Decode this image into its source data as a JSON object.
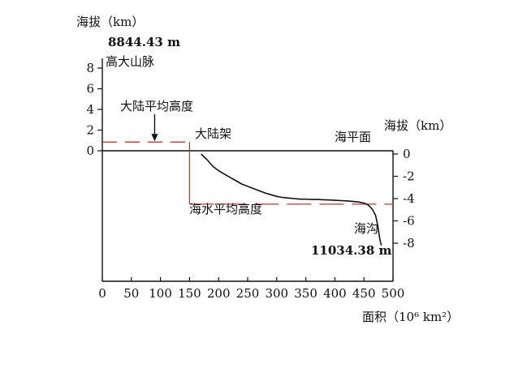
{
  "chart_data": {
    "type": "line",
    "title": "",
    "left_axis": {
      "label": "海拔（km）",
      "ticks": [
        "8",
        "6",
        "4",
        "2",
        "0"
      ],
      "range": [
        0,
        8
      ]
    },
    "right_axis": {
      "label": "海拔（km）",
      "ticks": [
        "0",
        "-2",
        "-4",
        "-6",
        "-8"
      ],
      "range": [
        -8,
        0
      ]
    },
    "x_axis": {
      "label": "面积（10⁶ km²）",
      "ticks": [
        "0",
        "50",
        "100",
        "150",
        "200",
        "250",
        "300",
        "350",
        "400",
        "450",
        "500"
      ],
      "range": [
        0,
        500
      ]
    },
    "annotations": {
      "peak_value": "8844.43 m",
      "mountain_label": "高大山脉",
      "land_mean_label": "大陆平均高度",
      "shelf_label": "大陆架",
      "sea_level_label": "海平面",
      "ocean_mean_label": "海水平均高度",
      "trench_label": "海沟",
      "trench_value": "11034.38 m"
    },
    "reference_lines": {
      "mean_land_height_km": 0.84,
      "mean_ocean_depth_km": -4.5,
      "land_area_1e6km2": 150,
      "color": "#c0392b"
    },
    "series": [
      {
        "x": [
          170,
          180,
          190,
          200,
          210,
          220,
          230,
          240,
          250,
          260,
          270,
          280,
          290,
          300,
          310,
          320,
          330,
          340,
          350,
          360,
          370,
          380,
          390,
          400,
          410,
          420,
          430,
          440,
          450,
          455,
          460,
          465,
          470,
          472,
          474,
          476,
          478,
          480
        ],
        "y": [
          0,
          -0.5,
          -1.1,
          -1.5,
          -1.8,
          -2.1,
          -2.4,
          -2.7,
          -2.9,
          -3.1,
          -3.3,
          -3.5,
          -3.65,
          -3.8,
          -3.9,
          -3.95,
          -4.0,
          -4.05,
          -4.05,
          -4.08,
          -4.08,
          -4.1,
          -4.12,
          -4.15,
          -4.18,
          -4.2,
          -4.25,
          -4.3,
          -4.4,
          -4.5,
          -4.7,
          -5.0,
          -5.5,
          -6.0,
          -6.5,
          -7.2,
          -7.8,
          -8.2
        ]
      }
    ]
  }
}
